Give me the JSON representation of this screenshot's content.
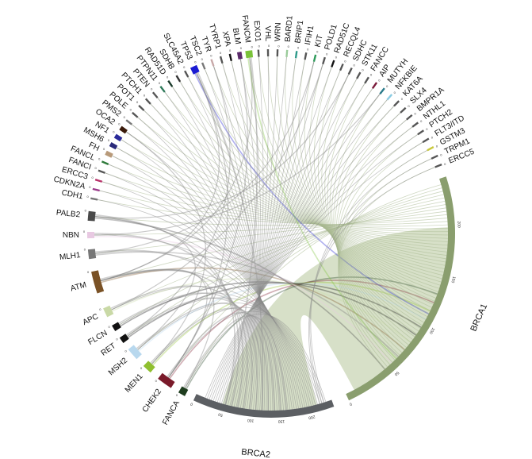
{
  "diagram": {
    "type": "chord",
    "segments": [
      {
        "name": "BRCA1",
        "size": 245,
        "color": "#8a9e6e",
        "ticks": [
          "0",
          "50",
          "100",
          "150",
          "200"
        ]
      },
      {
        "name": "BRCA2",
        "size": 240,
        "color": "#5c5f63",
        "ticks": [
          "0",
          "50",
          "100",
          "150",
          "200"
        ]
      },
      {
        "name": "FANCA",
        "size": 10,
        "color": "#1e3d1e"
      },
      {
        "name": "CHEK2",
        "size": 22,
        "color": "#7a1a2a"
      },
      {
        "name": "MEN1",
        "size": 12,
        "color": "#8fbf2f"
      },
      {
        "name": "MSH2",
        "size": 14,
        "color": "#b8d8ee"
      },
      {
        "name": "RET",
        "size": 8,
        "color": "#111111"
      },
      {
        "name": "FLCN",
        "size": 8,
        "color": "#111111"
      },
      {
        "name": "APC",
        "size": 10,
        "color": "#c9d9a6"
      },
      {
        "name": "ATM",
        "size": 24,
        "color": "#7a5226"
      },
      {
        "name": "MLH1",
        "size": 12,
        "color": "#777777"
      },
      {
        "name": "NBN",
        "size": 8,
        "color": "#e8c9e2"
      },
      {
        "name": "PALB2",
        "size": 10,
        "color": "#4a4a4a"
      },
      {
        "name": "CDH1",
        "size": 2,
        "color": "#777777"
      },
      {
        "name": "CDKN2A",
        "size": 2,
        "color": "#9a3a8a"
      },
      {
        "name": "ERCC3",
        "size": 2,
        "color": "#b8326a"
      },
      {
        "name": "FANCI",
        "size": 2,
        "color": "#555555"
      },
      {
        "name": "FANCL",
        "size": 2,
        "color": "#2e7a3a"
      },
      {
        "name": "FH",
        "size": 4,
        "color": "#b89a7a"
      },
      {
        "name": "MSH6",
        "size": 3,
        "color": "#2a2a7a"
      },
      {
        "name": "NF1",
        "size": 3,
        "color": "#2a2a9a"
      },
      {
        "name": "OCA2",
        "size": 4,
        "color": "#3a1a0a"
      },
      {
        "name": "PMS2",
        "size": 2,
        "color": "#777777"
      },
      {
        "name": "POLE",
        "size": 2,
        "color": "#555555"
      },
      {
        "name": "POT1",
        "size": 2,
        "color": "#555555"
      },
      {
        "name": "PTCH1",
        "size": 2,
        "color": "#555555"
      },
      {
        "name": "PTEN",
        "size": 2,
        "color": "#555555"
      },
      {
        "name": "PTPN11",
        "size": 2,
        "color": "#2e7a5a"
      },
      {
        "name": "RAD51D",
        "size": 2,
        "color": "#1a3a2a"
      },
      {
        "name": "SDHB",
        "size": 2,
        "color": "#333333"
      },
      {
        "name": "SLC45A2",
        "size": 2,
        "color": "#555555"
      },
      {
        "name": "TP53",
        "size": 6,
        "color": "#1a1ad2"
      },
      {
        "name": "TSC2",
        "size": 2,
        "color": "#777777"
      },
      {
        "name": "TYR",
        "size": 2,
        "color": "#c8a8a8"
      },
      {
        "name": "TYRP1",
        "size": 2,
        "color": "#555555"
      },
      {
        "name": "XPA",
        "size": 2,
        "color": "#111111"
      },
      {
        "name": "BLM",
        "size": 3,
        "color": "#5a2a6a"
      },
      {
        "name": "FANCM",
        "size": 6,
        "color": "#7ac23a"
      },
      {
        "name": "EXO1",
        "size": 2,
        "color": "#555555"
      },
      {
        "name": "VHL",
        "size": 2,
        "color": "#555555"
      },
      {
        "name": "WRN",
        "size": 2,
        "color": "#555555"
      },
      {
        "name": "BARD1",
        "size": 2,
        "color": "#9acb9a"
      },
      {
        "name": "BRIP1",
        "size": 2,
        "color": "#2e9a8a"
      },
      {
        "name": "IFIH1",
        "size": 2,
        "color": "#555555"
      },
      {
        "name": "KIT",
        "size": 2,
        "color": "#2e9a5a"
      },
      {
        "name": "POLD1",
        "size": 2,
        "color": "#555555"
      },
      {
        "name": "RAD51C",
        "size": 2,
        "color": "#111111"
      },
      {
        "name": "RECQL4",
        "size": 2,
        "color": "#555555"
      },
      {
        "name": "SDHC",
        "size": 2,
        "color": "#555555"
      },
      {
        "name": "STK11",
        "size": 2,
        "color": "#555555"
      },
      {
        "name": "FANCC",
        "size": 2,
        "color": "#555555"
      },
      {
        "name": "AIP",
        "size": 2,
        "color": "#7a1a3a"
      },
      {
        "name": "MUTYH",
        "size": 2,
        "color": "#2a7a8a"
      },
      {
        "name": "NFKBIE",
        "size": 2,
        "color": "#8acbe2"
      },
      {
        "name": "KAT6A",
        "size": 2,
        "color": "#555555"
      },
      {
        "name": "SLX4",
        "size": 2,
        "color": "#555555"
      },
      {
        "name": "BMPR1A",
        "size": 2,
        "color": "#555555"
      },
      {
        "name": "NTHL1",
        "size": 2,
        "color": "#555555"
      },
      {
        "name": "PTCH2",
        "size": 2,
        "color": "#555555"
      },
      {
        "name": "FLT3/ITD",
        "size": 2,
        "color": "#555555"
      },
      {
        "name": "GSTM3",
        "size": 2,
        "color": "#c8c83a"
      },
      {
        "name": "TRPM1",
        "size": 2,
        "color": "#555555"
      },
      {
        "name": "ERCC5",
        "size": 2,
        "color": "#555555"
      }
    ]
  }
}
